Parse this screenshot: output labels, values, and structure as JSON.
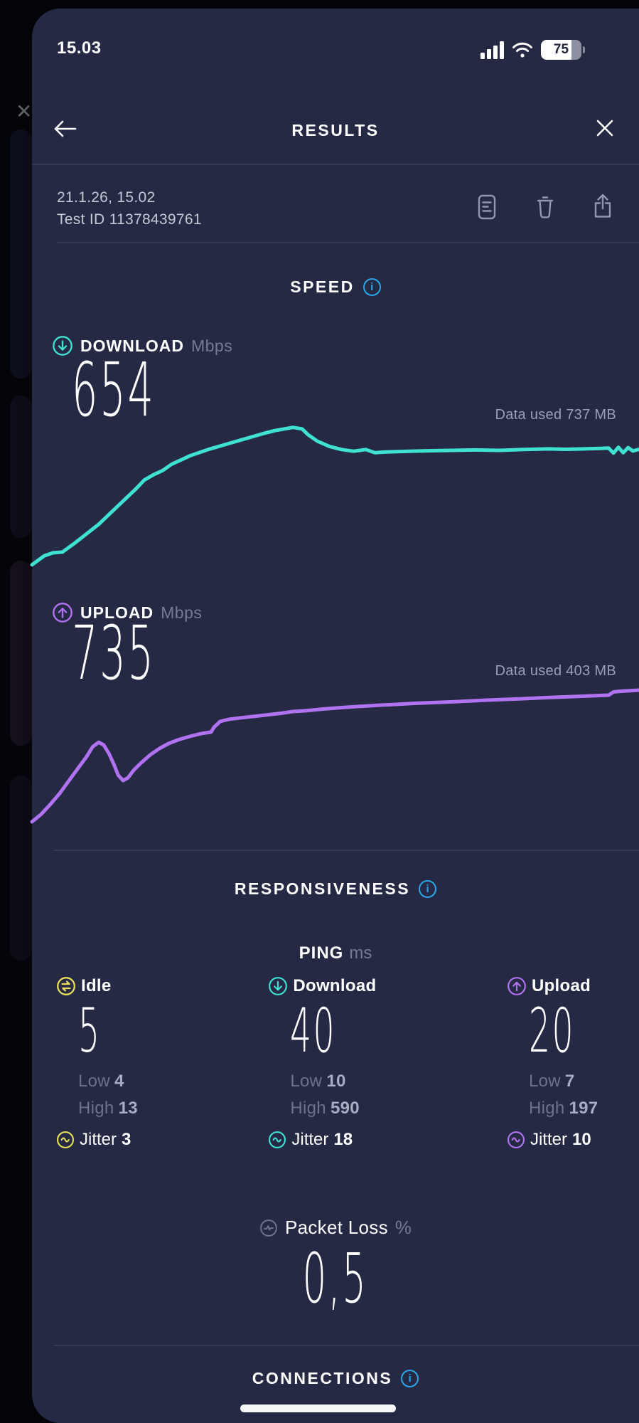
{
  "status_bar": {
    "time": "15.03",
    "battery_level": "75"
  },
  "header": {
    "title": "RESULTS"
  },
  "test_info": {
    "datetime": "21.1.26, 15.02",
    "test_id": "Test ID 11378439761"
  },
  "speed": {
    "heading": "SPEED",
    "download": {
      "label": "DOWNLOAD",
      "unit": "Mbps",
      "value": "654",
      "data_used": "Data used 737 MB"
    },
    "upload": {
      "label": "UPLOAD",
      "unit": "Mbps",
      "value": "735",
      "data_used": "Data used 403 MB"
    }
  },
  "responsiveness": {
    "heading": "RESPONSIVENESS",
    "ping": {
      "label": "PING",
      "unit": "ms"
    },
    "columns": [
      {
        "label": "Idle",
        "value": "5",
        "low_label": "Low",
        "low_value": "4",
        "high_label": "High",
        "high_value": "13",
        "jitter_label": "Jitter",
        "jitter_value": "3",
        "accent": "#e7de58"
      },
      {
        "label": "Download",
        "value": "40",
        "low_label": "Low",
        "low_value": "10",
        "high_label": "High",
        "high_value": "590",
        "jitter_label": "Jitter",
        "jitter_value": "18",
        "accent": "#3fe1d1"
      },
      {
        "label": "Upload",
        "value": "20",
        "low_label": "Low",
        "low_value": "7",
        "high_label": "High",
        "high_value": "197",
        "jitter_label": "Jitter",
        "jitter_value": "10",
        "accent": "#b172f1"
      }
    ],
    "packet_loss": {
      "label": "Packet Loss",
      "unit": "%",
      "value": "0,5"
    }
  },
  "connections": {
    "heading": "CONNECTIONS"
  },
  "colors": {
    "background": "#05060b",
    "card": "#252944",
    "accent_teal": "#3fe1d1",
    "accent_purple": "#b172f1",
    "accent_yellow": "#e7de58",
    "accent_blue": "#2aa6e9",
    "divider": "#343853",
    "text_muted": "#767b93"
  },
  "chart_data": [
    {
      "type": "line",
      "name": "download-throughput",
      "title": "Download speed over test duration",
      "unit": "Mbps",
      "result_mbps": 654,
      "data_used_mb": 737,
      "color": "#3fe1d1",
      "legend": "none",
      "grid": false,
      "ylim": [
        0,
        760
      ],
      "points": [
        [
          0,
          38
        ],
        [
          0.02,
          80
        ],
        [
          0.035,
          95
        ],
        [
          0.05,
          98
        ],
        [
          0.07,
          140
        ],
        [
          0.09,
          185
        ],
        [
          0.11,
          230
        ],
        [
          0.13,
          285
        ],
        [
          0.15,
          340
        ],
        [
          0.17,
          395
        ],
        [
          0.185,
          440
        ],
        [
          0.2,
          465
        ],
        [
          0.215,
          485
        ],
        [
          0.23,
          515
        ],
        [
          0.26,
          555
        ],
        [
          0.29,
          585
        ],
        [
          0.32,
          610
        ],
        [
          0.35,
          635
        ],
        [
          0.38,
          660
        ],
        [
          0.4,
          675
        ],
        [
          0.42,
          685
        ],
        [
          0.43,
          690
        ],
        [
          0.445,
          683
        ],
        [
          0.455,
          655
        ],
        [
          0.47,
          625
        ],
        [
          0.49,
          600
        ],
        [
          0.51,
          585
        ],
        [
          0.53,
          577
        ],
        [
          0.55,
          585
        ],
        [
          0.565,
          570
        ],
        [
          0.58,
          573
        ],
        [
          0.61,
          576
        ],
        [
          0.65,
          579
        ],
        [
          0.69,
          581
        ],
        [
          0.73,
          583
        ],
        [
          0.77,
          581
        ],
        [
          0.81,
          585
        ],
        [
          0.85,
          588
        ],
        [
          0.88,
          586
        ],
        [
          0.91,
          588
        ],
        [
          0.935,
          590
        ],
        [
          0.95,
          592
        ],
        [
          0.958,
          568
        ],
        [
          0.966,
          596
        ],
        [
          0.974,
          570
        ],
        [
          0.982,
          594
        ],
        [
          0.99,
          578
        ],
        [
          1,
          586
        ]
      ]
    },
    {
      "type": "line",
      "name": "upload-throughput",
      "title": "Upload speed over test duration",
      "unit": "Mbps",
      "result_mbps": 735,
      "data_used_mb": 403,
      "color": "#b172f1",
      "legend": "none",
      "grid": false,
      "ylim": [
        0,
        800
      ],
      "points": [
        [
          0,
          8
        ],
        [
          0.015,
          50
        ],
        [
          0.03,
          105
        ],
        [
          0.045,
          165
        ],
        [
          0.06,
          235
        ],
        [
          0.075,
          305
        ],
        [
          0.09,
          375
        ],
        [
          0.1,
          430
        ],
        [
          0.11,
          455
        ],
        [
          0.118,
          440
        ],
        [
          0.127,
          390
        ],
        [
          0.135,
          330
        ],
        [
          0.142,
          270
        ],
        [
          0.15,
          240
        ],
        [
          0.158,
          255
        ],
        [
          0.168,
          300
        ],
        [
          0.18,
          340
        ],
        [
          0.195,
          385
        ],
        [
          0.21,
          420
        ],
        [
          0.225,
          448
        ],
        [
          0.24,
          468
        ],
        [
          0.26,
          488
        ],
        [
          0.28,
          505
        ],
        [
          0.295,
          512
        ],
        [
          0.3,
          540
        ],
        [
          0.31,
          572
        ],
        [
          0.325,
          585
        ],
        [
          0.35,
          595
        ],
        [
          0.38,
          606
        ],
        [
          0.41,
          618
        ],
        [
          0.43,
          628
        ],
        [
          0.45,
          632
        ],
        [
          0.48,
          642
        ],
        [
          0.51,
          650
        ],
        [
          0.54,
          657
        ],
        [
          0.57,
          663
        ],
        [
          0.6,
          668
        ],
        [
          0.63,
          674
        ],
        [
          0.66,
          678
        ],
        [
          0.69,
          682
        ],
        [
          0.72,
          687
        ],
        [
          0.75,
          692
        ],
        [
          0.78,
          696
        ],
        [
          0.81,
          700
        ],
        [
          0.84,
          705
        ],
        [
          0.87,
          709
        ],
        [
          0.9,
          713
        ],
        [
          0.93,
          717
        ],
        [
          0.95,
          720
        ],
        [
          0.958,
          738
        ],
        [
          0.97,
          742
        ],
        [
          0.985,
          745
        ],
        [
          1,
          748
        ]
      ]
    }
  ]
}
